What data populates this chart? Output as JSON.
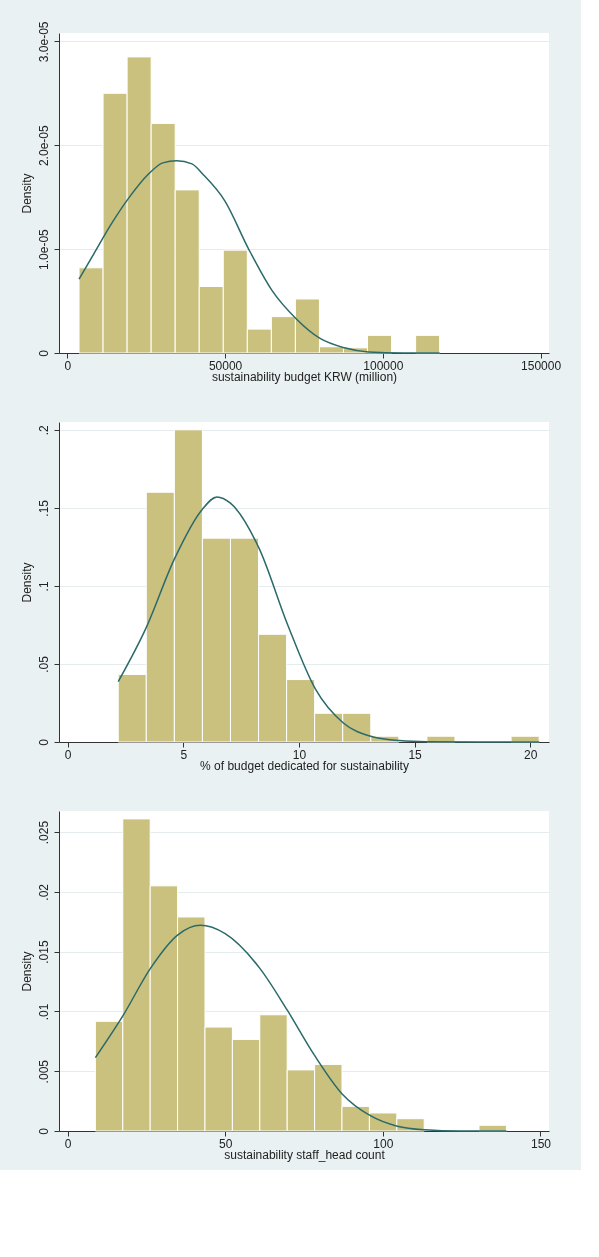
{
  "chart_data": [
    {
      "type": "histogram",
      "xlabel": "sustainability budget KRW (million)",
      "ylabel": "Density",
      "bins": [
        3700,
        11320,
        18940,
        26560,
        34180,
        41800,
        49420,
        57040,
        64660,
        72280,
        79900,
        87520,
        95140,
        102760,
        110380,
        118000
      ],
      "values": [
        8.2e-06,
        2.5e-05,
        2.85e-05,
        2.21e-05,
        1.57e-05,
        6.4e-06,
        9.9e-06,
        2.3e-06,
        3.5e-06,
        5.2e-06,
        6e-07,
        5e-07,
        1.7e-06,
        0,
        1.7e-06
      ],
      "color": "#cbc17f",
      "series": [
        {
          "type": "line",
          "color": "#2a6a6a",
          "x": [
            3700,
            8300,
            14090,
            19900,
            25640,
            30250,
            34640,
            39500,
            42960,
            50000,
            57300,
            64900,
            72500,
            80100,
            87800,
            95400,
            106500,
            118000
          ],
          "values": [
            7.1e-06,
            9.5e-06,
            1.25e-05,
            1.51e-05,
            1.72e-05,
            1.83e-05,
            1.85e-05,
            1.82e-05,
            1.72e-05,
            1.46e-05,
            1.01e-05,
            6e-06,
            3.3e-06,
            1.4e-06,
            5e-07,
            1e-07,
            0,
            0
          ]
        }
      ],
      "xlim": [
        -2650,
        152660
      ],
      "xticks": [
        0,
        50000,
        100000,
        150000
      ],
      "ylim": [
        0,
        3.08e-05
      ],
      "yticks": [
        {
          "value": 0,
          "label": "0"
        },
        {
          "value": 1e-05,
          "label": "1.0e-05"
        },
        {
          "value": 2e-05,
          "label": "2.0e-05"
        },
        {
          "value": 3e-05,
          "label": "3.0e-05"
        }
      ],
      "grid": "y"
    },
    {
      "type": "histogram",
      "xlabel": "% of budget dedicated for sustainability",
      "ylabel": "Density",
      "bins": [
        2.19,
        3.403,
        4.616,
        5.829,
        7.042,
        8.255,
        9.468,
        10.681,
        11.894,
        13.107,
        14.32,
        15.533,
        16.746,
        17.959,
        19.172,
        20.385
      ],
      "values": [
        0.0433,
        0.16,
        0.2,
        0.1306,
        0.1306,
        0.069,
        0.04,
        0.0184,
        0.0184,
        0.0037,
        0,
        0.0037,
        0,
        0,
        0.0037
      ],
      "color": "#cbc17f",
      "series": [
        {
          "type": "line",
          "color": "#2a6a6a",
          "x": [
            2.19,
            3.4,
            4.61,
            5.82,
            6.46,
            7.04,
            8.28,
            9.5,
            10.71,
            11.92,
            13.14,
            14.35,
            15.56,
            17.7,
            20.39
          ],
          "values": [
            0.0387,
            0.0733,
            0.117,
            0.149,
            0.157,
            0.153,
            0.124,
            0.0756,
            0.034,
            0.0122,
            0.0035,
            0.0009,
            0.0002,
            0,
            0
          ]
        }
      ],
      "xlim": [
        -0.37,
        20.81
      ],
      "xticks": [
        0,
        5,
        10,
        15,
        20
      ],
      "ylim": [
        0,
        0.205
      ],
      "yticks": [
        0,
        {
          "value": 0.05,
          "label": ".05"
        },
        {
          "value": 0.1,
          "label": ".1"
        },
        {
          "value": 0.15,
          "label": ".15"
        },
        {
          "value": 0.2,
          "label": ".2"
        }
      ],
      "grid": "y"
    },
    {
      "type": "histogram",
      "xlabel": "sustainability staff_head count",
      "ylabel": "Density",
      "bins": [
        8.84,
        17.53,
        26.22,
        34.91,
        43.6,
        52.29,
        60.98,
        69.67,
        78.36,
        87.05,
        95.74,
        104.43,
        113.12,
        121.81,
        130.5,
        139.19
      ],
      "values": [
        0.00917,
        0.0261,
        0.0205,
        0.0179,
        0.00869,
        0.00766,
        0.00972,
        0.00511,
        0.00557,
        0.00206,
        0.00151,
        0.00103,
        0,
        0,
        0.00048
      ],
      "color": "#cbc17f",
      "series": [
        {
          "type": "line",
          "color": "#2a6a6a",
          "x": [
            8.84,
            17.6,
            26.3,
            35.0,
            42.1,
            50,
            61,
            69.7,
            78.4,
            87.1,
            95.9,
            104.6,
            113.3,
            124.4,
            139.2
          ],
          "values": [
            0.00614,
            0.00965,
            0.0136,
            0.0164,
            0.0172,
            0.0165,
            0.0136,
            0.0101,
            0.0063,
            0.0031,
            0.0013,
            0.0004,
            0.0001,
            0,
            0
          ]
        }
      ],
      "xlim": [
        -2.7,
        152.7
      ],
      "xticks": [
        0,
        50,
        100,
        150
      ],
      "ylim": [
        0,
        0.02676
      ],
      "yticks": [
        0,
        {
          "value": 0.005,
          "label": ".005"
        },
        {
          "value": 0.01,
          "label": ".01"
        },
        {
          "value": 0.015,
          "label": ".015"
        },
        {
          "value": 0.02,
          "label": ".02"
        },
        {
          "value": 0.025,
          "label": ".025"
        }
      ],
      "grid": "y"
    }
  ]
}
